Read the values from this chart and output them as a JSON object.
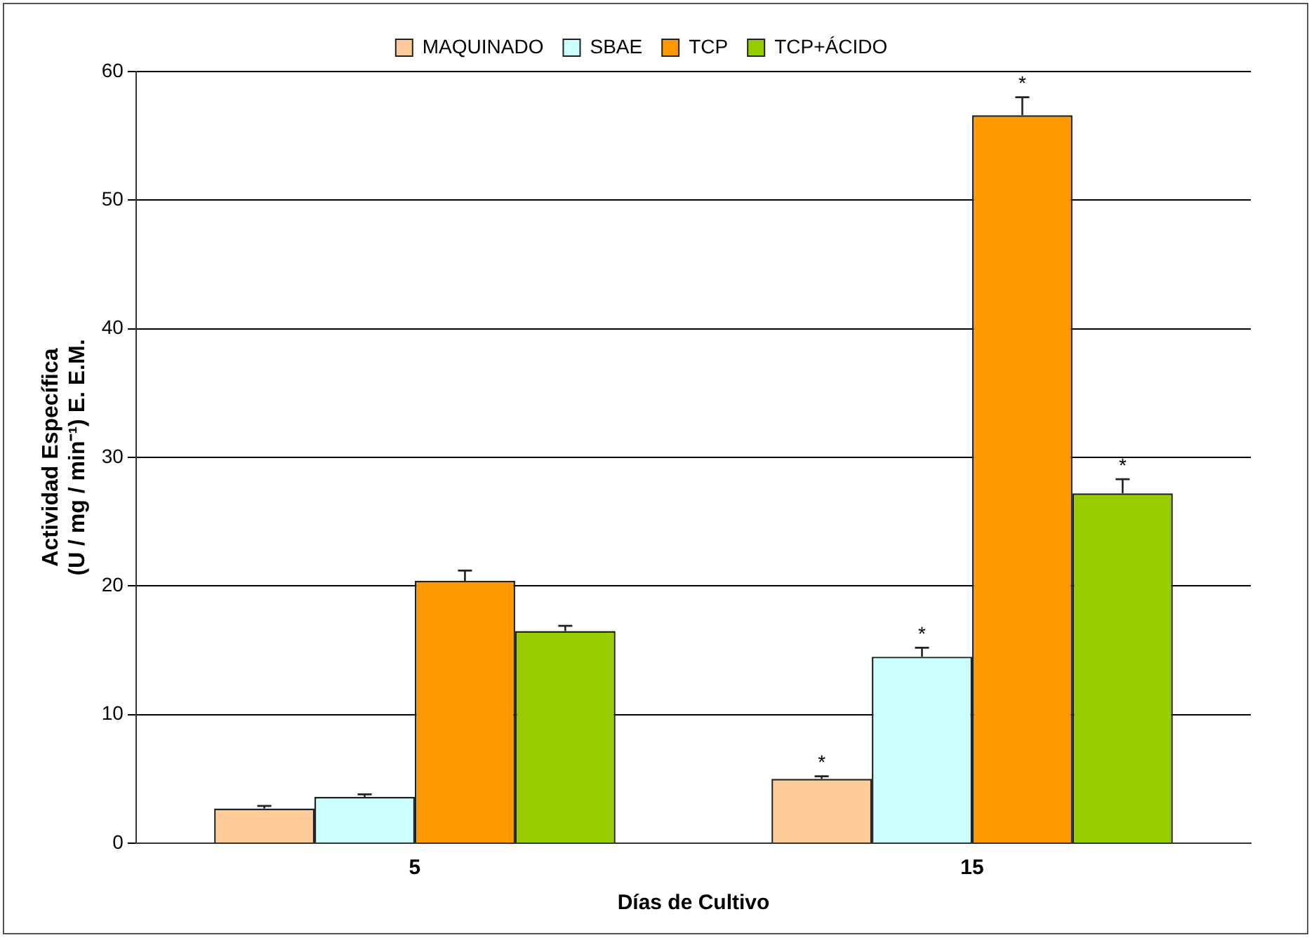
{
  "chart_data": {
    "type": "bar",
    "xlabel": "Días de Cultivo",
    "ylabel": "Actividad Específica\n(U / mg / min⁻¹) E. E.M.",
    "categories": [
      "5",
      "15"
    ],
    "series": [
      {
        "name": "MAQUINADO",
        "color": "#ffcc99",
        "values": [
          2.7,
          5.0
        ],
        "errors": [
          0.2,
          0.2
        ],
        "value_labels": [
          null,
          "*"
        ]
      },
      {
        "name": "SBAE",
        "color": "#ccffff",
        "values": [
          3.6,
          14.5
        ],
        "errors": [
          0.2,
          0.7
        ],
        "value_labels": [
          null,
          "*"
        ]
      },
      {
        "name": "TCP",
        "color": "#ff9900",
        "values": [
          20.4,
          56.6
        ],
        "errors": [
          0.8,
          1.4
        ],
        "value_labels": [
          null,
          "*"
        ]
      },
      {
        "name": "TCP+ÁCIDO",
        "color": "#99cc00",
        "values": [
          16.5,
          27.2
        ],
        "errors": [
          0.4,
          1.1
        ],
        "value_labels": [
          null,
          "*"
        ]
      }
    ],
    "ylim": [
      0,
      60
    ],
    "yticks": [
      0,
      10,
      20,
      30,
      40,
      50,
      60
    ],
    "grid": "y",
    "legend": "top"
  }
}
